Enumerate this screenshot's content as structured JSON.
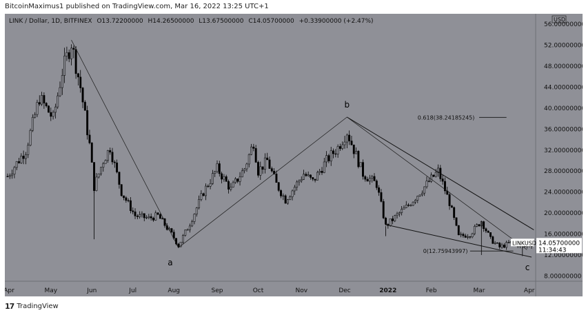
{
  "header": {
    "publish_line": "BitcoinMaximus1 published on TradingView.com, Mar 16, 2022 13:25 UTC+1"
  },
  "legend": {
    "symbol": "LINK / Dollar, 1D, BITFINEX",
    "open": "O13.72200000",
    "high": "H14.26500000",
    "low": "L13.67500000",
    "close": "C14.05700000",
    "change": "+0.33900000 (+2.47%)"
  },
  "footer": {
    "brand": "TradingView",
    "logo_glyph": "17"
  },
  "colors": {
    "background": "#8f9097",
    "candle": "#000000",
    "line": "#1a1a1a",
    "axis_bg": "#8f9097"
  },
  "chart_data": {
    "type": "candlestick",
    "currency_label": "USD",
    "y_ticks": [
      "56.00000000",
      "52.00000000",
      "48.00000000",
      "44.00000000",
      "40.00000000",
      "36.00000000",
      "32.00000000",
      "28.00000000",
      "24.00000000",
      "20.00000000",
      "16.00000000",
      "12.00000000",
      "8.00000000"
    ],
    "x_ticks": [
      "Apr",
      "May",
      "Jun",
      "Jul",
      "Aug",
      "Sep",
      "Oct",
      "Nov",
      "Dec",
      "2022",
      "Feb",
      "Mar",
      "Apr"
    ],
    "ylim": [
      7,
      58
    ],
    "price_label": {
      "symbol": "LINKUSD",
      "price": "14.05700000",
      "countdown": "11:34:43"
    },
    "fib_labels": [
      {
        "text": "0.618(38.24185245)",
        "value": 38.24
      },
      {
        "text": "0(12.75943997)",
        "value": 12.76
      }
    ],
    "wave_labels": [
      {
        "text": "a",
        "date_index": 72,
        "value": 13.2
      },
      {
        "text": "b",
        "date_index": 149,
        "value": 38.3
      },
      {
        "text": "c",
        "date_index": 230,
        "value": 12.5
      }
    ],
    "anchors": [
      {
        "date_index": 28,
        "value": 53.0
      },
      {
        "date_index": 75,
        "value": 13.4
      },
      {
        "date_index": 149,
        "value": 38.3
      },
      {
        "date_index": 228,
        "value": 13.0
      }
    ],
    "path_keyframes": [
      [
        0,
        27.0
      ],
      [
        8,
        32.0
      ],
      [
        14,
        42.0
      ],
      [
        20,
        38.0
      ],
      [
        24,
        47.0
      ],
      [
        28,
        52.5
      ],
      [
        32,
        44.0
      ],
      [
        36,
        33.0
      ],
      [
        38,
        25.0
      ],
      [
        42,
        30.0
      ],
      [
        45,
        32.5
      ],
      [
        50,
        24.0
      ],
      [
        56,
        19.5
      ],
      [
        62,
        19.0
      ],
      [
        66,
        19.5
      ],
      [
        72,
        16.0
      ],
      [
        75,
        13.8
      ],
      [
        80,
        18.0
      ],
      [
        86,
        24.0
      ],
      [
        92,
        28.5
      ],
      [
        98,
        24.5
      ],
      [
        104,
        28.5
      ],
      [
        108,
        33.5
      ],
      [
        110,
        28.0
      ],
      [
        114,
        30.0
      ],
      [
        118,
        25.5
      ],
      [
        122,
        22.5
      ],
      [
        126,
        25.0
      ],
      [
        130,
        27.5
      ],
      [
        134,
        26.0
      ],
      [
        140,
        30.0
      ],
      [
        145,
        32.5
      ],
      [
        149,
        35.5
      ],
      [
        153,
        31.0
      ],
      [
        156,
        27.5
      ],
      [
        162,
        25.5
      ],
      [
        166,
        17.5
      ],
      [
        172,
        20.0
      ],
      [
        176,
        21.5
      ],
      [
        180,
        23.5
      ],
      [
        185,
        26.0
      ],
      [
        189,
        28.0
      ],
      [
        194,
        22.0
      ],
      [
        198,
        15.5
      ],
      [
        203,
        16.0
      ],
      [
        208,
        18.5
      ],
      [
        212,
        15.0
      ],
      [
        216,
        13.5
      ],
      [
        222,
        14.5
      ],
      [
        226,
        13.5
      ],
      [
        230,
        14.05
      ]
    ]
  }
}
